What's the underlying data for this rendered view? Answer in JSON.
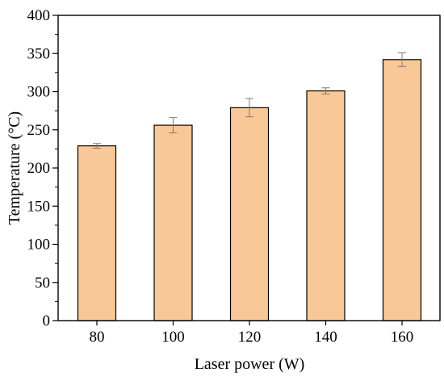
{
  "chart_data": {
    "type": "bar",
    "categories": [
      "80",
      "100",
      "120",
      "140",
      "160"
    ],
    "values": [
      229,
      256,
      279,
      301,
      342
    ],
    "error": [
      3,
      10,
      12,
      4,
      9
    ],
    "xlabel": "Laser power (W)",
    "ylabel": "Temperature (°C)",
    "ylim": [
      0,
      400
    ],
    "yticks": [
      0,
      50,
      100,
      150,
      200,
      250,
      300,
      350,
      400
    ],
    "bar_color": "#f9c898",
    "bar_edge_color": "#000000",
    "error_bar_color": "#7a7a7a",
    "grid": false,
    "legend": "none"
  }
}
